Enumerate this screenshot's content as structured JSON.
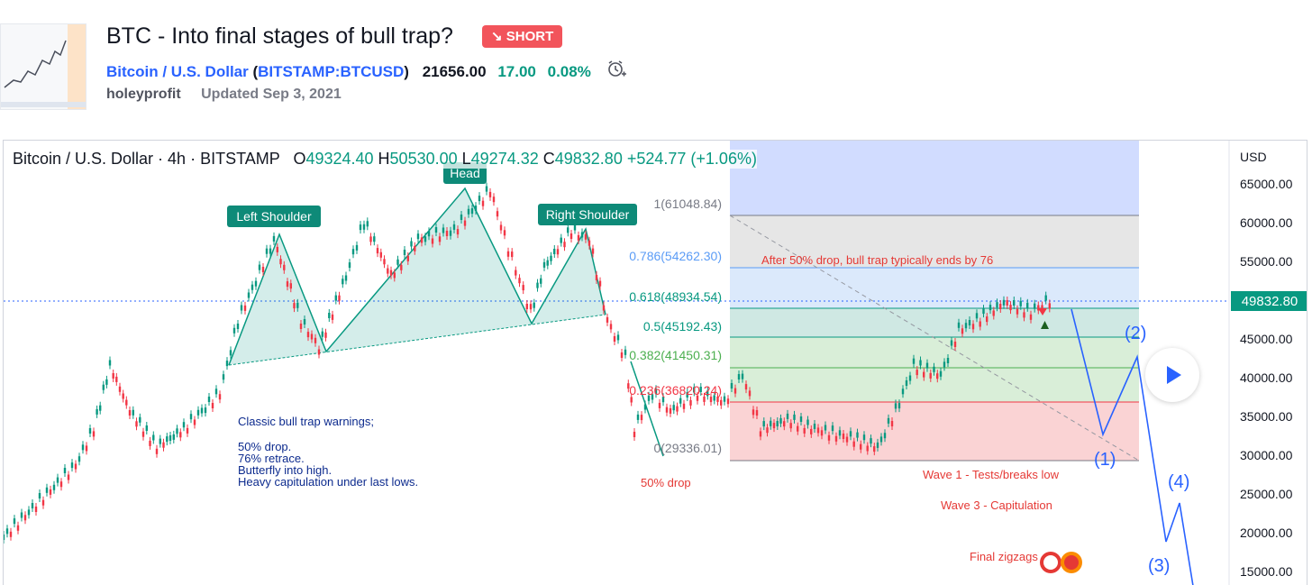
{
  "idea": {
    "title": "BTC - Into final stages of bull trap?",
    "badge": "SHORT",
    "badge_arrow": "↘",
    "symbol_name": "Bitcoin / U.S. Dollar",
    "exchange_symbol": "BITSTAMP:BTCUSD",
    "price": "21656.00",
    "change": "17.00",
    "change_pct": "0.08%",
    "author": "holeyprofit",
    "updated": "Updated Sep 3, 2021",
    "alarm_icon": "alarm-clock-plus-icon"
  },
  "chart": {
    "legend_title": "Bitcoin / U.S. Dollar · 4h · BITSTAMP",
    "ohlc": [
      {
        "k": "O",
        "v": "49324.40"
      },
      {
        "k": "H",
        "v": "50530.00"
      },
      {
        "k": "L",
        "v": "49274.32"
      },
      {
        "k": "C",
        "v": "49832.80"
      }
    ],
    "change": "+524.77 (+1.06%)",
    "currency": "USD",
    "price_ticks": [
      "65000.00",
      "60000.00",
      "55000.00",
      "50000.00",
      "45000.00",
      "40000.00",
      "35000.00",
      "30000.00",
      "25000.00",
      "20000.00",
      "15000.00"
    ],
    "last_price": "49832.80",
    "fib_levels": [
      {
        "label": "1(61048.84)",
        "color": "#787b86"
      },
      {
        "label": "0.786(54262.30)",
        "color": "#5b9cf6"
      },
      {
        "label": "0.618(48934.54)",
        "color": "#089981"
      },
      {
        "label": "0.5(45192.43)",
        "color": "#089981"
      },
      {
        "label": "0.382(41450.31)",
        "color": "#4caf50"
      },
      {
        "label": "0.236(36820.24)",
        "color": "#f23645"
      },
      {
        "label": "0(29336.01)",
        "color": "#787b86"
      }
    ],
    "pattern_labels": {
      "left": "Left Shoulder",
      "head": "Head",
      "right": "Right Shoulder"
    },
    "annotations": {
      "bull_trap": "After 50% drop, bull trap typically ends by 76",
      "fifty_drop": "50% drop",
      "wave1": "Wave 1 - Tests/breaks low",
      "wave3": "Wave 3 - Capitulation",
      "final": "Final zigzags"
    },
    "warnings": [
      "Classic bull trap warnings;",
      "",
      "50% drop.",
      "76% retrace.",
      "Butterfly into high.",
      "Heavy capitulation under last lows."
    ],
    "waves": [
      "(1)",
      "(2)",
      "(3)",
      "(4)"
    ],
    "play_icon": "play-icon"
  }
}
